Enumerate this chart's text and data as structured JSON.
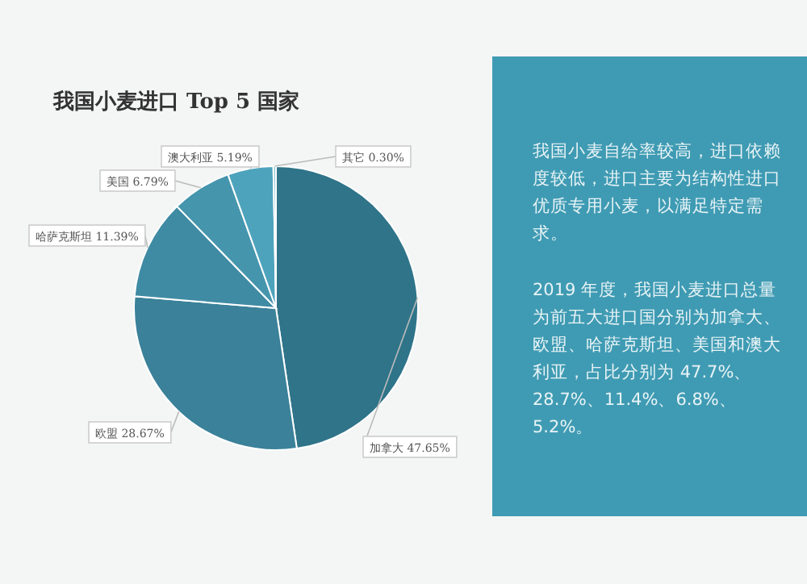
{
  "chart_data": {
    "type": "pie",
    "title": "我国小麦进口 Top 5 国家",
    "categories": [
      "加拿大",
      "欧盟",
      "哈萨克斯坦",
      "美国",
      "澳大利亚",
      "其它"
    ],
    "values": [
      47.65,
      28.67,
      11.39,
      6.79,
      5.19,
      0.3
    ],
    "colors": [
      "#2f7489",
      "#3a8199",
      "#3f8ba3",
      "#4595ad",
      "#4ea3bc",
      "#8cc3d2"
    ],
    "value_labels": [
      "47.65%",
      "28.67%",
      "11.39%",
      "6.79%",
      "5.19%",
      "0.30%"
    ],
    "annotations": [
      "我国小麦自给率较高，进口依赖度较低，进口主要为结构性进口优质专用小麦，以满足特定需求。",
      "2019 年度，我国小麦进口总量为前五大进口国分别为加拿大、欧盟、哈萨克斯坦、美国和澳大利亚，占比分别为 47.7%、28.7%、11.4%、6.8%、5.2%。"
    ]
  }
}
